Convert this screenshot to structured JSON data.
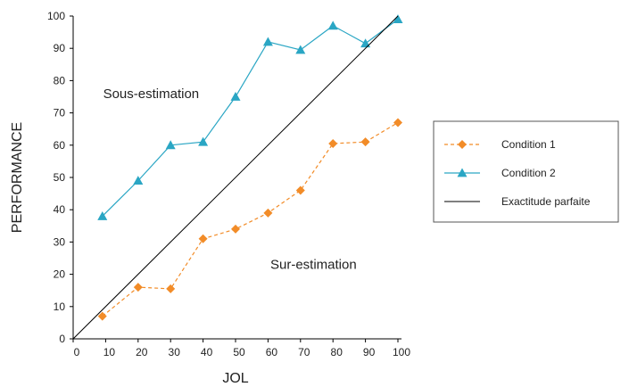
{
  "chart_data": {
    "type": "line",
    "xlabel": "JOL",
    "ylabel": "PERFORMANCE",
    "xlim": [
      0,
      100
    ],
    "ylim": [
      0,
      100
    ],
    "xticks": [
      0,
      10,
      20,
      30,
      40,
      50,
      60,
      70,
      80,
      90,
      100
    ],
    "yticks": [
      0,
      10,
      20,
      30,
      40,
      50,
      60,
      70,
      80,
      90,
      100
    ],
    "grid": false,
    "legend_position": "right",
    "x": [
      9,
      20,
      30,
      40,
      50,
      60,
      70,
      80,
      90,
      100
    ],
    "series": [
      {
        "name": "Condition 1",
        "values": [
          7,
          16,
          15.5,
          31,
          34,
          39,
          46,
          60.5,
          61,
          67
        ],
        "color": "#f28c28",
        "line": "dashed",
        "marker": "diamond"
      },
      {
        "name": "Condition 2",
        "values": [
          38,
          49,
          60,
          61,
          75,
          92,
          89.5,
          97,
          91.5,
          99
        ],
        "color": "#2aa6c4",
        "line": "solid",
        "marker": "triangle"
      },
      {
        "name": "Exactitude parfaite",
        "x": [
          0,
          100
        ],
        "values": [
          0,
          100
        ],
        "color": "#000000",
        "line": "solid",
        "marker": "none"
      }
    ],
    "annotations": [
      {
        "text": "Sous-estimation",
        "x": 24,
        "y": 76
      },
      {
        "text": "Sur-estimation",
        "x": 74,
        "y": 23
      }
    ]
  }
}
